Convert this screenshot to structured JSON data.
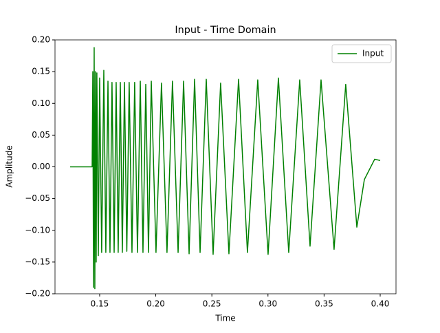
{
  "chart_data": {
    "type": "line",
    "title": "Input - Time Domain",
    "x_label": "Time",
    "y_label": "Amplitude",
    "legend": "upper right",
    "xlim": [
      0.1102,
      0.4141
    ],
    "ylim": [
      -0.2,
      0.2
    ],
    "xticks": [
      0.15,
      {
        "value": 0.2,
        "label": "0.20"
      },
      0.25,
      {
        "value": 0.3,
        "label": "0.30"
      },
      0.35,
      {
        "value": 0.4,
        "label": "0.40"
      }
    ],
    "yticks": [
      {
        "value": -0.2,
        "label": "−0.20"
      },
      {
        "value": -0.15,
        "label": "−0.15"
      },
      {
        "value": -0.1,
        "label": "−0.10"
      },
      {
        "value": -0.05,
        "label": "−0.05"
      },
      {
        "value": 0,
        "label": "0.00"
      },
      0.05,
      {
        "value": 0.1,
        "label": "0.10"
      },
      0.15,
      {
        "value": 0.2,
        "label": "0.20"
      }
    ],
    "x": [
      0.1237,
      0.1433,
      0.1439,
      0.1445,
      0.1451,
      0.1457,
      0.1463,
      0.1469,
      0.1475,
      0.1488,
      0.15,
      0.1518,
      0.1537,
      0.1555,
      0.1574,
      0.1592,
      0.161,
      0.1629,
      0.1647,
      0.1665,
      0.1684,
      0.1702,
      0.1721,
      0.1742,
      0.1763,
      0.1788,
      0.1812,
      0.1837,
      0.1862,
      0.1886,
      0.1911,
      0.1935,
      0.196,
      0.2002,
      0.2051,
      0.21,
      0.2149,
      0.2199,
      0.2248,
      0.2297,
      0.2346,
      0.2395,
      0.245,
      0.2511,
      0.2578,
      0.2652,
      0.2738,
      0.2817,
      0.2909,
      0.3001,
      0.3093,
      0.3185,
      0.3283,
      0.3375,
      0.3473,
      0.3589,
      0.3693,
      0.3792,
      0.3859,
      0.3951,
      0.4
    ],
    "series": [
      {
        "name": "Input",
        "color": "#008000",
        "values": [
          0,
          0,
          0.15,
          -0.19,
          0.188,
          -0.192,
          0.15,
          -0.15,
          0.148,
          -0.14,
          0.14,
          -0.135,
          0.152,
          -0.135,
          0.135,
          -0.135,
          0.133,
          -0.135,
          0.133,
          -0.135,
          0.133,
          -0.135,
          0.133,
          -0.133,
          0.133,
          -0.135,
          0.133,
          -0.135,
          0.135,
          -0.135,
          0.13,
          -0.135,
          0.135,
          -0.135,
          0.132,
          -0.135,
          0.135,
          -0.135,
          0.135,
          -0.137,
          0.138,
          -0.135,
          0.138,
          -0.138,
          0.132,
          -0.137,
          0.138,
          -0.135,
          0.137,
          -0.138,
          0.14,
          -0.135,
          0.137,
          -0.125,
          0.137,
          -0.13,
          0.13,
          -0.095,
          -0.02,
          0.012,
          0.01
        ]
      }
    ]
  }
}
